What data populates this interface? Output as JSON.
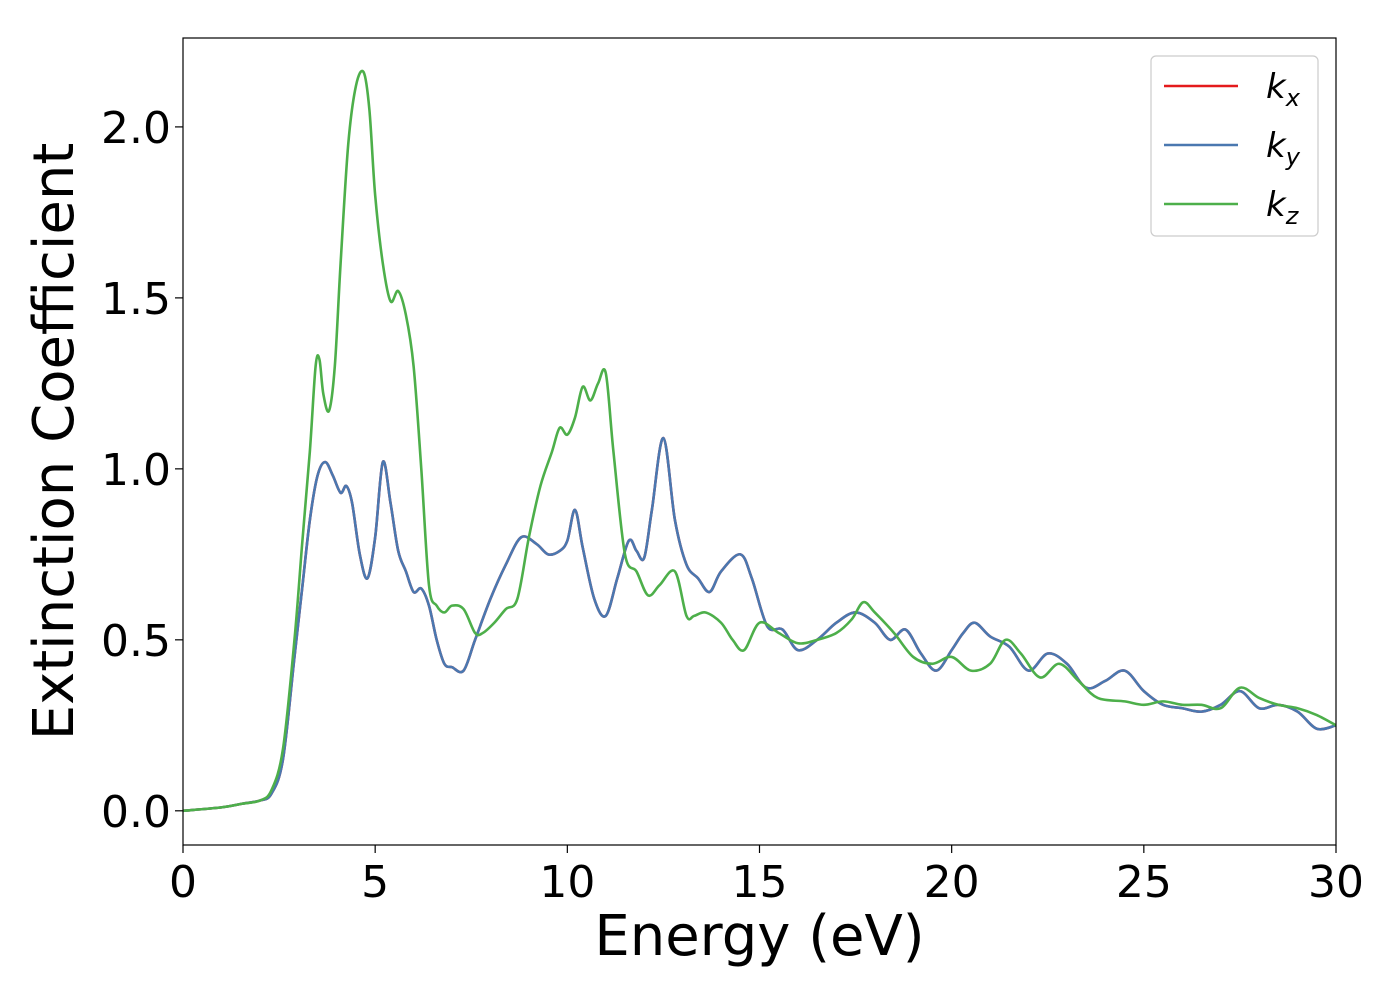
{
  "chart_data": {
    "type": "line",
    "xlabel": "Energy (eV)",
    "ylabel": "Extinction Coefficient",
    "xlim": [
      0,
      30
    ],
    "ylim": [
      -0.1,
      2.26
    ],
    "xticks": [
      0,
      5,
      10,
      15,
      20,
      25,
      30
    ],
    "xtick_labels": [
      "0",
      "5",
      "10",
      "15",
      "20",
      "25",
      "30"
    ],
    "yticks": [
      0.0,
      0.5,
      1.0,
      1.5,
      2.0
    ],
    "ytick_labels": [
      "0.0",
      "0.5",
      "1.0",
      "1.5",
      "2.0"
    ],
    "grid": false,
    "legend_position": "top-right",
    "series": [
      {
        "name": "k_x",
        "legend_main": "k",
        "legend_sub": "x",
        "color": "#e41a1c",
        "x": [
          0,
          1,
          1.5,
          2,
          2.3,
          2.6,
          2.9,
          3.1,
          3.3,
          3.5,
          3.7,
          3.9,
          4.1,
          4.25,
          4.4,
          4.6,
          4.8,
          5.0,
          5.2,
          5.4,
          5.6,
          5.8,
          6.0,
          6.2,
          6.4,
          6.6,
          6.8,
          7.0,
          7.3,
          7.6,
          8.0,
          8.4,
          8.8,
          9.2,
          9.5,
          9.8,
          10.0,
          10.2,
          10.4,
          10.7,
          11.0,
          11.3,
          11.6,
          11.8,
          12.0,
          12.2,
          12.5,
          12.8,
          13.1,
          13.4,
          13.7,
          14.0,
          14.5,
          14.8,
          15.2,
          15.6,
          16.0,
          16.5,
          17.0,
          17.5,
          18.0,
          18.4,
          18.8,
          19.2,
          19.6,
          20.0,
          20.3,
          20.6,
          21.0,
          21.5,
          22.0,
          22.5,
          23.0,
          23.5,
          24.0,
          24.5,
          25.0,
          25.5,
          26.0,
          26.5,
          27.0,
          27.5,
          28.0,
          28.5,
          29.0,
          29.5,
          30.0
        ],
        "y": [
          0.0,
          0.01,
          0.02,
          0.03,
          0.05,
          0.15,
          0.45,
          0.65,
          0.85,
          0.98,
          1.02,
          0.98,
          0.93,
          0.95,
          0.9,
          0.75,
          0.68,
          0.8,
          1.02,
          0.9,
          0.76,
          0.7,
          0.64,
          0.65,
          0.6,
          0.5,
          0.43,
          0.42,
          0.41,
          0.5,
          0.62,
          0.72,
          0.8,
          0.78,
          0.75,
          0.76,
          0.79,
          0.88,
          0.77,
          0.62,
          0.57,
          0.68,
          0.79,
          0.76,
          0.74,
          0.88,
          1.09,
          0.85,
          0.72,
          0.68,
          0.64,
          0.7,
          0.75,
          0.68,
          0.54,
          0.53,
          0.47,
          0.5,
          0.55,
          0.58,
          0.55,
          0.5,
          0.53,
          0.46,
          0.41,
          0.47,
          0.52,
          0.55,
          0.51,
          0.48,
          0.41,
          0.46,
          0.43,
          0.36,
          0.38,
          0.41,
          0.35,
          0.31,
          0.3,
          0.29,
          0.31,
          0.35,
          0.3,
          0.31,
          0.29,
          0.24,
          0.25
        ]
      },
      {
        "name": "k_y",
        "legend_main": "k",
        "legend_sub": "y",
        "color": "#4a78b0",
        "x": [
          0,
          1,
          1.5,
          2,
          2.3,
          2.6,
          2.9,
          3.1,
          3.3,
          3.5,
          3.7,
          3.9,
          4.1,
          4.25,
          4.4,
          4.6,
          4.8,
          5.0,
          5.2,
          5.4,
          5.6,
          5.8,
          6.0,
          6.2,
          6.4,
          6.6,
          6.8,
          7.0,
          7.3,
          7.6,
          8.0,
          8.4,
          8.8,
          9.2,
          9.5,
          9.8,
          10.0,
          10.2,
          10.4,
          10.7,
          11.0,
          11.3,
          11.6,
          11.8,
          12.0,
          12.2,
          12.5,
          12.8,
          13.1,
          13.4,
          13.7,
          14.0,
          14.5,
          14.8,
          15.2,
          15.6,
          16.0,
          16.5,
          17.0,
          17.5,
          18.0,
          18.4,
          18.8,
          19.2,
          19.6,
          20.0,
          20.3,
          20.6,
          21.0,
          21.5,
          22.0,
          22.5,
          23.0,
          23.5,
          24.0,
          24.5,
          25.0,
          25.5,
          26.0,
          26.5,
          27.0,
          27.5,
          28.0,
          28.5,
          29.0,
          29.5,
          30.0
        ],
        "y": [
          0.0,
          0.01,
          0.02,
          0.03,
          0.05,
          0.15,
          0.45,
          0.65,
          0.85,
          0.98,
          1.02,
          0.98,
          0.93,
          0.95,
          0.9,
          0.75,
          0.68,
          0.8,
          1.02,
          0.9,
          0.76,
          0.7,
          0.64,
          0.65,
          0.6,
          0.5,
          0.43,
          0.42,
          0.41,
          0.5,
          0.62,
          0.72,
          0.8,
          0.78,
          0.75,
          0.76,
          0.79,
          0.88,
          0.77,
          0.62,
          0.57,
          0.68,
          0.79,
          0.76,
          0.74,
          0.88,
          1.09,
          0.85,
          0.72,
          0.68,
          0.64,
          0.7,
          0.75,
          0.68,
          0.54,
          0.53,
          0.47,
          0.5,
          0.55,
          0.58,
          0.55,
          0.5,
          0.53,
          0.46,
          0.41,
          0.47,
          0.52,
          0.55,
          0.51,
          0.48,
          0.41,
          0.46,
          0.43,
          0.36,
          0.38,
          0.41,
          0.35,
          0.31,
          0.3,
          0.29,
          0.31,
          0.35,
          0.3,
          0.31,
          0.29,
          0.24,
          0.25
        ]
      },
      {
        "name": "k_z",
        "legend_main": "k",
        "legend_sub": "z",
        "color": "#4daf4a",
        "x": [
          0,
          1,
          1.5,
          2,
          2.3,
          2.6,
          2.9,
          3.1,
          3.3,
          3.45,
          3.55,
          3.65,
          3.8,
          3.95,
          4.1,
          4.3,
          4.5,
          4.7,
          4.85,
          5.0,
          5.2,
          5.4,
          5.6,
          5.8,
          6.0,
          6.2,
          6.4,
          6.6,
          6.8,
          7.0,
          7.3,
          7.6,
          7.8,
          8.1,
          8.4,
          8.7,
          9.0,
          9.3,
          9.6,
          9.8,
          10.0,
          10.2,
          10.4,
          10.6,
          10.8,
          11.0,
          11.2,
          11.5,
          11.8,
          12.1,
          12.4,
          12.8,
          13.1,
          13.3,
          13.6,
          14.0,
          14.3,
          14.6,
          15.0,
          15.5,
          16.0,
          16.5,
          17.0,
          17.4,
          17.7,
          18.0,
          18.5,
          19.0,
          19.5,
          20.0,
          20.5,
          21.0,
          21.4,
          21.8,
          22.3,
          22.8,
          23.3,
          23.8,
          24.5,
          25.0,
          25.5,
          26.0,
          26.5,
          27.0,
          27.5,
          28.0,
          28.5,
          29.0,
          29.5,
          30.0
        ],
        "y": [
          0.0,
          0.01,
          0.02,
          0.03,
          0.06,
          0.18,
          0.5,
          0.78,
          1.05,
          1.3,
          1.32,
          1.22,
          1.17,
          1.3,
          1.6,
          1.95,
          2.12,
          2.16,
          2.05,
          1.8,
          1.6,
          1.49,
          1.52,
          1.45,
          1.3,
          1.0,
          0.66,
          0.6,
          0.58,
          0.6,
          0.59,
          0.52,
          0.52,
          0.55,
          0.59,
          0.62,
          0.8,
          0.95,
          1.05,
          1.12,
          1.1,
          1.15,
          1.24,
          1.2,
          1.25,
          1.28,
          1.05,
          0.75,
          0.7,
          0.63,
          0.66,
          0.7,
          0.57,
          0.57,
          0.58,
          0.55,
          0.5,
          0.47,
          0.55,
          0.52,
          0.49,
          0.5,
          0.52,
          0.56,
          0.61,
          0.58,
          0.52,
          0.45,
          0.43,
          0.45,
          0.41,
          0.43,
          0.5,
          0.46,
          0.39,
          0.43,
          0.38,
          0.33,
          0.32,
          0.31,
          0.32,
          0.31,
          0.31,
          0.3,
          0.36,
          0.33,
          0.31,
          0.3,
          0.28,
          0.25
        ]
      }
    ]
  }
}
